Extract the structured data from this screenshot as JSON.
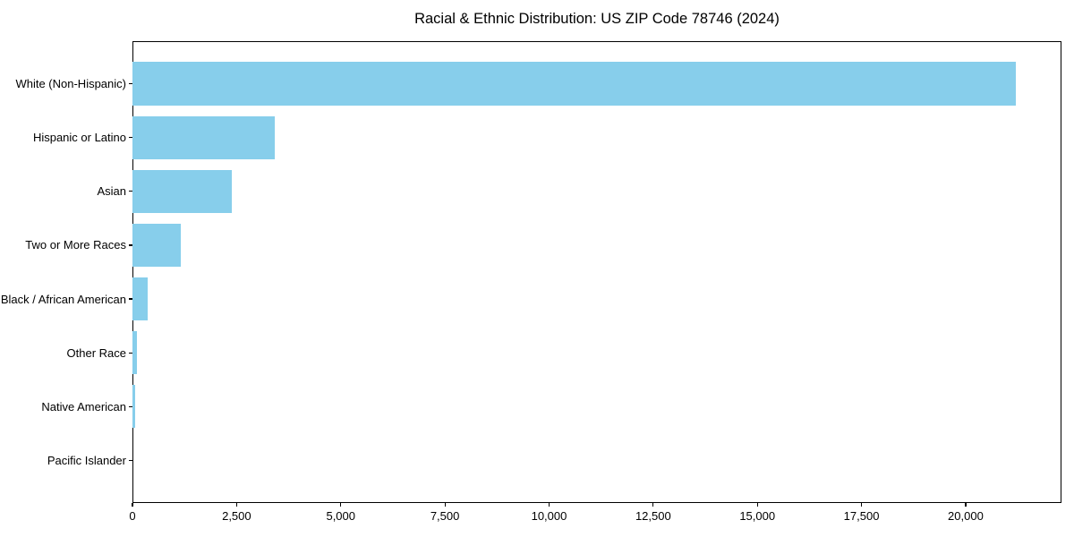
{
  "chart_data": {
    "type": "bar",
    "orientation": "horizontal",
    "title": "Racial & Ethnic Distribution: US ZIP Code 78746 (2024)",
    "categories": [
      "White (Non-Hispanic)",
      "Hispanic or Latino",
      "Asian",
      "Two or More Races",
      "Black / African American",
      "Other Race",
      "Native American",
      "Pacific Islander"
    ],
    "values": [
      21200,
      3420,
      2380,
      1160,
      370,
      110,
      70,
      0
    ],
    "bar_color": "#87CEEB",
    "xlabel": "",
    "ylabel": "",
    "xlim": [
      0,
      22300
    ],
    "x_ticks": [
      0,
      2500,
      5000,
      7500,
      10000,
      12500,
      15000,
      17500,
      20000
    ],
    "x_tick_labels": [
      "0",
      "2,500",
      "5,000",
      "7,500",
      "10,000",
      "12,500",
      "15,000",
      "17,500",
      "20,000"
    ],
    "grid": false,
    "legend": null,
    "background_color": "#ffffff",
    "spine_color": "#000000"
  }
}
